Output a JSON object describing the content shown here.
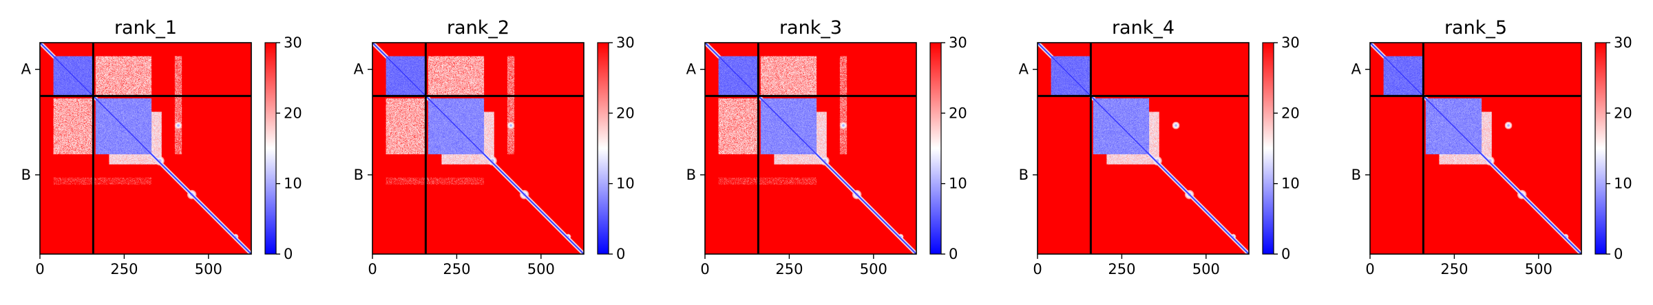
{
  "figure": {
    "background": "#ffffff"
  },
  "colormap": {
    "name": "bwr",
    "low": "#0000ff",
    "mid": "#ffffff",
    "high": "#ff0000",
    "min": 0,
    "max": 30
  },
  "chart_data": [
    {
      "type": "heatmap",
      "title": "rank_1",
      "xticks": [
        "0",
        "250",
        "500"
      ],
      "xtick_values": [
        0,
        250,
        500
      ],
      "ytick_labels": [
        "A",
        "B"
      ],
      "ytick_values": [
        79,
        392
      ],
      "chain_boundary": 158,
      "length": 627,
      "colorbar": {
        "min": 0,
        "max": 30,
        "ticks": [
          "0",
          "10",
          "20",
          "30"
        ],
        "tick_values": [
          0,
          10,
          20,
          30
        ]
      },
      "confidence_variant": 0
    },
    {
      "type": "heatmap",
      "title": "rank_2",
      "xticks": [
        "0",
        "250",
        "500"
      ],
      "xtick_values": [
        0,
        250,
        500
      ],
      "ytick_labels": [
        "A",
        "B"
      ],
      "ytick_values": [
        79,
        392
      ],
      "chain_boundary": 158,
      "length": 627,
      "colorbar": {
        "min": 0,
        "max": 30,
        "ticks": [
          "0",
          "10",
          "20",
          "30"
        ],
        "tick_values": [
          0,
          10,
          20,
          30
        ]
      },
      "confidence_variant": 1
    },
    {
      "type": "heatmap",
      "title": "rank_3",
      "xticks": [
        "0",
        "250",
        "500"
      ],
      "xtick_values": [
        0,
        250,
        500
      ],
      "ytick_labels": [
        "A",
        "B"
      ],
      "ytick_values": [
        79,
        392
      ],
      "chain_boundary": 158,
      "length": 627,
      "colorbar": {
        "min": 0,
        "max": 30,
        "ticks": [
          "0",
          "10",
          "20",
          "30"
        ],
        "tick_values": [
          0,
          10,
          20,
          30
        ]
      },
      "confidence_variant": 2
    },
    {
      "type": "heatmap",
      "title": "rank_4",
      "xticks": [
        "0",
        "250",
        "500"
      ],
      "xtick_values": [
        0,
        250,
        500
      ],
      "ytick_labels": [
        "A",
        "B"
      ],
      "ytick_values": [
        79,
        392
      ],
      "chain_boundary": 158,
      "length": 627,
      "colorbar": {
        "min": 0,
        "max": 30,
        "ticks": [
          "0",
          "10",
          "20",
          "30"
        ],
        "tick_values": [
          0,
          10,
          20,
          30
        ]
      },
      "confidence_variant": 3
    },
    {
      "type": "heatmap",
      "title": "rank_5",
      "xticks": [
        "0",
        "250",
        "500"
      ],
      "xtick_values": [
        0,
        250,
        500
      ],
      "ytick_labels": [
        "A",
        "B"
      ],
      "ytick_values": [
        79,
        392
      ],
      "chain_boundary": 158,
      "length": 627,
      "colorbar": {
        "min": 0,
        "max": 30,
        "ticks": [
          "0",
          "10",
          "20",
          "30"
        ],
        "tick_values": [
          0,
          10,
          20,
          30
        ]
      },
      "confidence_variant": 4
    }
  ]
}
